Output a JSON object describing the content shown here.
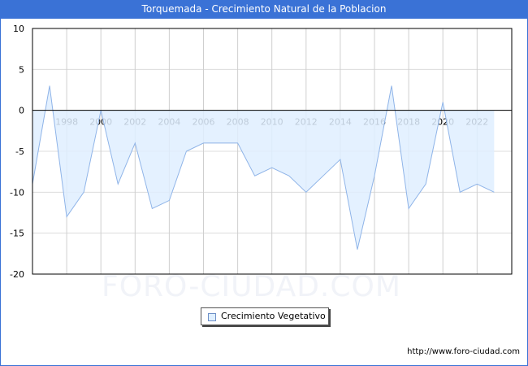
{
  "title": "Torquemada - Crecimiento Natural de la Poblacion",
  "watermark": "FORO-CIUDAD.COM",
  "url": "http://www.foro-ciudad.com",
  "legend": {
    "label": "Crecimiento Vegetativo"
  },
  "colors": {
    "header": "#3a72d6",
    "fill": "#dfefff",
    "line": "#8fb4e8"
  },
  "chart_data": {
    "type": "area",
    "title": "Torquemada - Crecimiento Natural de la Poblacion",
    "xlabel": "",
    "ylabel": "",
    "ylim": [
      -20,
      10
    ],
    "yticks": [
      10,
      5,
      0,
      -5,
      -10,
      -15,
      -20
    ],
    "xticks": [
      1998,
      2000,
      2002,
      2004,
      2006,
      2008,
      2010,
      2012,
      2014,
      2016,
      2018,
      2020,
      2022
    ],
    "grid": true,
    "legend_position": "bottom",
    "x": [
      1996,
      1997,
      1998,
      1999,
      2000,
      2001,
      2002,
      2003,
      2004,
      2005,
      2006,
      2007,
      2008,
      2009,
      2010,
      2011,
      2012,
      2013,
      2014,
      2015,
      2016,
      2017,
      2018,
      2019,
      2020,
      2021,
      2022,
      2023
    ],
    "series": [
      {
        "name": "Crecimiento Vegetativo",
        "values": [
          -9,
          3,
          -13,
          -10,
          0,
          -9,
          -4,
          -12,
          -11,
          -5,
          -4,
          -4,
          -4,
          -8,
          -7,
          -8,
          -10,
          -8,
          -6,
          -17,
          -8,
          3,
          -12,
          -9,
          1,
          -10,
          -9,
          -10
        ]
      }
    ]
  }
}
